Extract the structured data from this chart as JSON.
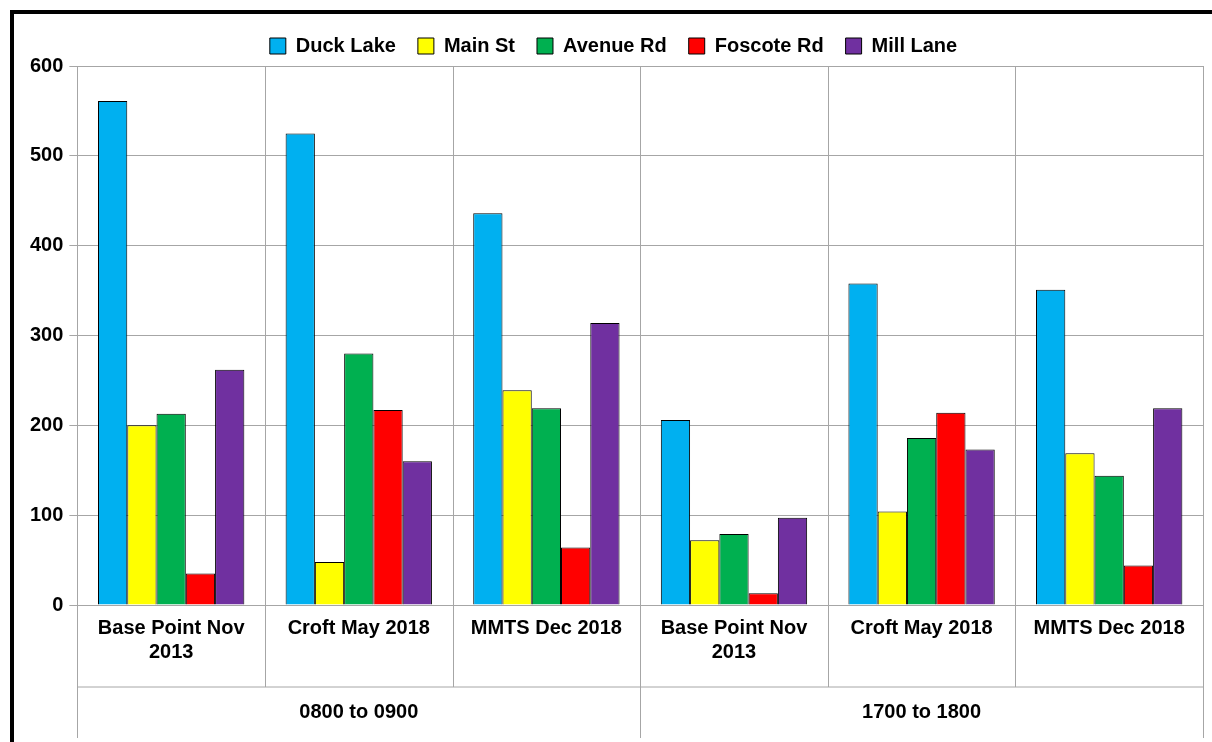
{
  "chart_data": {
    "type": "bar",
    "categories": [
      "Base Point Nov 2013",
      "Croft May 2018",
      "MMTS Dec 2018",
      "Base Point Nov 2013",
      "Croft May 2018",
      "MMTS Dec 2018"
    ],
    "series": [
      {
        "name": "Duck Lake",
        "color": "#00b0f0",
        "values": [
          561,
          525,
          436,
          206,
          358,
          351
        ]
      },
      {
        "name": "Main St",
        "color": "#ffff00",
        "values": [
          200,
          48,
          239,
          72,
          104,
          169
        ]
      },
      {
        "name": "Avenue Rd",
        "color": "#00b050",
        "values": [
          213,
          280,
          219,
          79,
          186,
          144
        ]
      },
      {
        "name": "Foscote Rd",
        "color": "#ff0000",
        "values": [
          35,
          217,
          64,
          13,
          214,
          44
        ]
      },
      {
        "name": "Mill Lane",
        "color": "#7030a0",
        "values": [
          262,
          160,
          314,
          97,
          173,
          219
        ]
      }
    ],
    "ylim": [
      0,
      600
    ],
    "yticks": [
      0,
      100,
      200,
      300,
      400,
      500,
      600
    ],
    "grid": true,
    "legend": "top",
    "annotations": [
      "0800 to 0900",
      "1700 to 1800"
    ]
  }
}
